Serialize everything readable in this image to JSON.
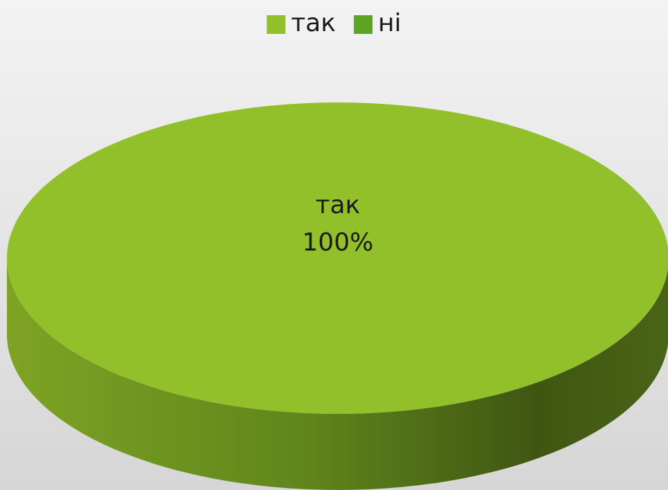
{
  "chart_data": {
    "type": "pie",
    "categories": [
      "так",
      "ні"
    ],
    "values": [
      100,
      0
    ],
    "value_labels": [
      "100%",
      null
    ],
    "colors": [
      "#92c02a",
      "#5da423"
    ],
    "legend": "top"
  }
}
